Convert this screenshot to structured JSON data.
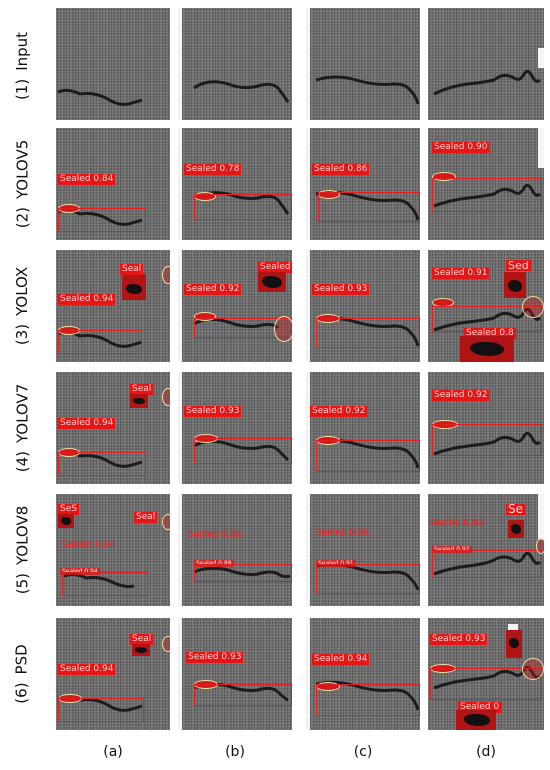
{
  "rows": [
    {
      "num": "(1)",
      "label": "Input"
    },
    {
      "num": "(2)",
      "label": "YOLOV5"
    },
    {
      "num": "(3)",
      "label": "YOLOX"
    },
    {
      "num": "(4)",
      "label": "YOLOV7"
    },
    {
      "num": "(5)",
      "label": "YOLOV8"
    },
    {
      "num": "(6)",
      "label": "PSD"
    }
  ],
  "columns": [
    "(a)",
    "(b)",
    "(c)",
    "(d)"
  ],
  "detections": {
    "r2": [
      "Sealed 0.84",
      "Sealed 0.78",
      "Sealed 0.86",
      "Sealed 0.90"
    ],
    "r3": [
      "Sealed 0.94",
      "Seal",
      "Sealed 0.92",
      "Sealed 0",
      "Sealed 0.93",
      "Sealed 0.91",
      "Sed",
      "Sealed 0.8"
    ],
    "r4": [
      "Sealed 0.94",
      "Seal",
      "Sealed 0.93",
      "Sealed 0.92",
      "Sealed 0.92"
    ],
    "r5": [
      "SeS",
      "Seal",
      "Sealed 0.94",
      "Sealed 0.94",
      "Sealed 0.88",
      "Sealed 0.88",
      "Sealed 0.91",
      "Sealed 0.91",
      "Sealed 0.93",
      "Sealed 0.92",
      "Se"
    ],
    "r6": [
      "Sealed 0.94",
      "Seal",
      "Sealed 0.93",
      "Sealed 0.94",
      "Sealed 0.93",
      "Sealed 0"
    ]
  }
}
